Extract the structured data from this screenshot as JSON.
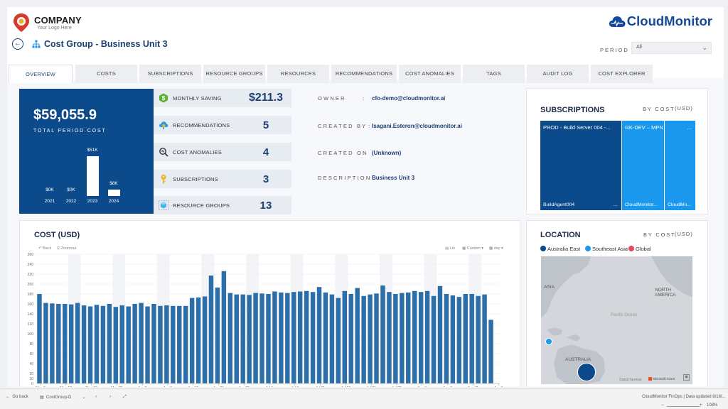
{
  "company": {
    "name": "COMPANY",
    "tagline": "Your Logo Here"
  },
  "brand": {
    "name": "CloudMonitor"
  },
  "page": {
    "title": "Cost Group - Business Unit 3"
  },
  "period": {
    "label": "PERIOD",
    "value": "All"
  },
  "tabs": [
    "OVERVIEW",
    "COSTS",
    "SUBSCRIPTIONS",
    "RESOURCE GROUPS",
    "RESOURCES",
    "RECOMMENDATIONS",
    "COST ANOMALIES",
    "TAGS",
    "AUDIT LOG",
    "COST EXPLORER"
  ],
  "active_tab": "OVERVIEW",
  "total": {
    "value": "$59,055.9",
    "label": "TOTAL PERIOD COST",
    "years": [
      "2021",
      "2022",
      "2023",
      "2024"
    ],
    "year_values": [
      0,
      0,
      51,
      8
    ],
    "year_labels": [
      "$0K",
      "$0K",
      "$51K",
      "$8K"
    ]
  },
  "kpis": [
    {
      "label": "MONTHLY SAVING",
      "value": "$211.3",
      "icon": "dollar-hexagon-icon"
    },
    {
      "label": "RECOMMENDATIONS",
      "value": "5",
      "icon": "cloud-gear-icon"
    },
    {
      "label": "COST ANOMALIES",
      "value": "4",
      "icon": "magnifier-anomaly-icon"
    },
    {
      "label": "SUBSCRIPTIONS",
      "value": "3",
      "icon": "key-icon"
    },
    {
      "label": "RESOURCE GROUPS",
      "value": "13",
      "icon": "cube-icon"
    }
  ],
  "meta": {
    "owner_label": "OWNER",
    "owner_value": "cfo-demo@cloudmonitor.ai",
    "created_by_label": "CREATED BY",
    "created_by_value": "Isagani.Esteron@cloudmonitor.ai",
    "created_on_label": "CREATED ON",
    "created_on_value": "(Unknown)",
    "description_label": "DESCRIPTION",
    "description_value": "Business Unit 3"
  },
  "subscriptions": {
    "title": "SUBSCRIPTIONS",
    "by": "BY COST",
    "unit": "(USD)",
    "tiles": [
      {
        "top": "PROD - Build Server 004 -...",
        "bottom": "BuildAgent004",
        "more": "...",
        "color": "#0b4a8b"
      },
      {
        "top": "GK-DEV – MPN",
        "bottom": "CloudMonitor...",
        "color": "#1a98ee"
      },
      {
        "top": "...",
        "bottom": "CloudMo...",
        "color": "#1a98ee"
      }
    ]
  },
  "cost_chart": {
    "title": "COST (USD)"
  },
  "chart_toolbar": {
    "back": "Back",
    "zoomout": "Zoomout",
    "lin": "Lin",
    "custom": "Custom",
    "day": "day"
  },
  "chart_data": {
    "type": "bar",
    "ylim": [
      0,
      260
    ],
    "yticks": [
      0,
      10,
      20,
      40,
      60,
      80,
      100,
      120,
      140,
      160,
      180,
      200,
      220,
      240,
      260
    ],
    "grid": true,
    "color": "#2c6ea8",
    "values": [
      180,
      162,
      161,
      160,
      160,
      159,
      162,
      157,
      155,
      158,
      156,
      160,
      154,
      157,
      155,
      160,
      162,
      155,
      160,
      156,
      157,
      156,
      156,
      156,
      172,
      173,
      175,
      217,
      193,
      226,
      182,
      179,
      179,
      178,
      182,
      181,
      180,
      185,
      183,
      182,
      184,
      185,
      186,
      184,
      194,
      183,
      179,
      172,
      186,
      180,
      192,
      176,
      179,
      181,
      197,
      184,
      180,
      182,
      183,
      186,
      184,
      186,
      176,
      196,
      180,
      177,
      174,
      180,
      180,
      176,
      179,
      128
    ],
    "x_tick_labels": [
      "May 6",
      "May 12",
      "May 19",
      "May 26",
      "Jun 2",
      "Jun 9",
      "Jun 16",
      "Jun 21",
      "Jun 28",
      "Jul 1",
      "Jul 6",
      "Jul 11",
      "Jul 16",
      "Jul 21",
      "Jul 28",
      "Aug 1",
      "Aug 8",
      "Aug 11",
      "Aug 1"
    ],
    "month_labels": [
      "May 2023",
      "Jun 2023",
      "Jul 2023",
      "Aug 2023"
    ]
  },
  "location": {
    "title": "LOCATION",
    "by": "BY COST",
    "unit": "(USD)",
    "legend": [
      {
        "label": "Australia East",
        "color": "#0b4a8b"
      },
      {
        "label": "Southeast Asia",
        "color": "#1a98ee"
      },
      {
        "label": "Global",
        "color": "#e8485c"
      }
    ],
    "map_labels": {
      "asia": "ASIA",
      "north_america": "NORTH AMERICA",
      "pacific": "Pacific Ocean",
      "australia": "AUSTRALIA",
      "attribution": "©2023 TomTom",
      "provider": "Microsoft Azure"
    }
  },
  "footer": {
    "go_back": "Go back",
    "page_name": "CostGroup-D",
    "status": "CloudMonitor FinOps | Data updated 8/18/...",
    "zoom": "108%"
  }
}
